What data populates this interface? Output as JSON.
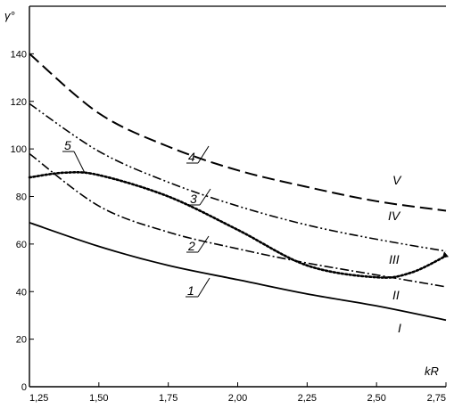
{
  "chart_data": {
    "type": "line",
    "title": "",
    "xlabel": "kR",
    "ylabel": "γ°",
    "xlim": [
      1.25,
      2.75
    ],
    "ylim": [
      0,
      160
    ],
    "grid": false,
    "x_ticks": [
      1.25,
      1.5,
      1.75,
      2.0,
      2.25,
      2.5,
      2.75
    ],
    "x_tick_labels": [
      "1,25",
      "1,50",
      "1,75",
      "2,00",
      "2,25",
      "2,50",
      "2,75"
    ],
    "y_ticks": [
      0,
      20,
      40,
      60,
      80,
      100,
      120,
      140
    ],
    "y_tick_labels": [
      "0",
      "20",
      "40",
      "60",
      "80",
      "100",
      "120",
      "140"
    ],
    "series": [
      {
        "roman": "I",
        "number": "1",
        "style": "solid",
        "x": [
          1.25,
          1.5,
          1.75,
          2.0,
          2.25,
          2.5,
          2.75
        ],
        "values": [
          69,
          59,
          51,
          45,
          39,
          34,
          28
        ]
      },
      {
        "roman": "II",
        "number": "2",
        "style": "dashdot",
        "x": [
          1.25,
          1.5,
          1.75,
          2.0,
          2.25,
          2.5,
          2.75
        ],
        "values": [
          98,
          76,
          65,
          58,
          52,
          47,
          42
        ]
      },
      {
        "roman": "IV",
        "number": "3",
        "style": "dashdotdot",
        "x": [
          1.25,
          1.5,
          1.75,
          2.0,
          2.25,
          2.5,
          2.75
        ],
        "values": [
          119,
          99,
          86,
          76,
          68,
          62,
          57
        ]
      },
      {
        "roman": "V",
        "number": "4",
        "style": "dashed",
        "x": [
          1.25,
          1.5,
          1.75,
          2.0,
          2.25,
          2.5,
          2.75
        ],
        "values": [
          140,
          115,
          101,
          91,
          84,
          78,
          74
        ]
      },
      {
        "roman": "III",
        "number": "5",
        "style": "dotted",
        "x": [
          1.25,
          1.375,
          1.5,
          1.75,
          2.0,
          2.25,
          2.5,
          2.625,
          2.75
        ],
        "values": [
          88,
          90,
          89,
          80,
          66,
          51,
          46,
          48,
          55
        ]
      }
    ]
  }
}
